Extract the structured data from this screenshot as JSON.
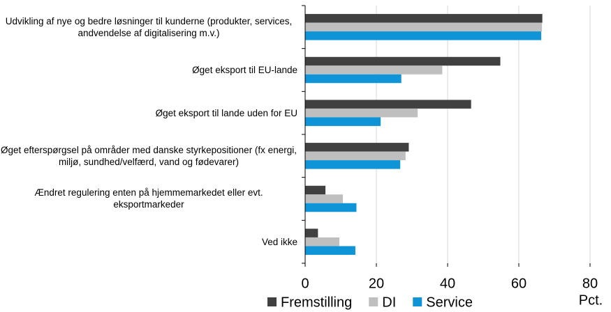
{
  "chart_data": {
    "type": "hbar",
    "categories": [
      "Udvikling af nye og bedre løsninger til kunderne (produkter, services, andvendelse af digitalisering m.v.)",
      "Øget eksport til EU-lande",
      "Øget eksport til lande uden for EU",
      "Øget efterspørgsel på områder med danske styrkepositioner (fx energi, miljø, sundhed/velfærd, vand og fødevarer)",
      "Ændret regulering enten på hjemmemarkedet eller evt. eksportmarkeder",
      "Ved ikke"
    ],
    "series": [
      {
        "name": "Fremstilling",
        "color": "#404040",
        "values": [
          66.6,
          54.8,
          46.6,
          29.1,
          5.7,
          3.6
        ]
      },
      {
        "name": "DI",
        "color": "#bfbfbf",
        "values": [
          66.5,
          38.5,
          31.6,
          28.2,
          10.6,
          9.6
        ]
      },
      {
        "name": "Service",
        "color": "#0f95d7",
        "values": [
          66.3,
          27.0,
          21.2,
          26.7,
          14.4,
          14.1
        ]
      }
    ],
    "x_label": "Pct.",
    "xlim": [
      0,
      80
    ],
    "xticks": [
      0,
      20,
      40,
      60,
      80
    ],
    "grid": true
  }
}
